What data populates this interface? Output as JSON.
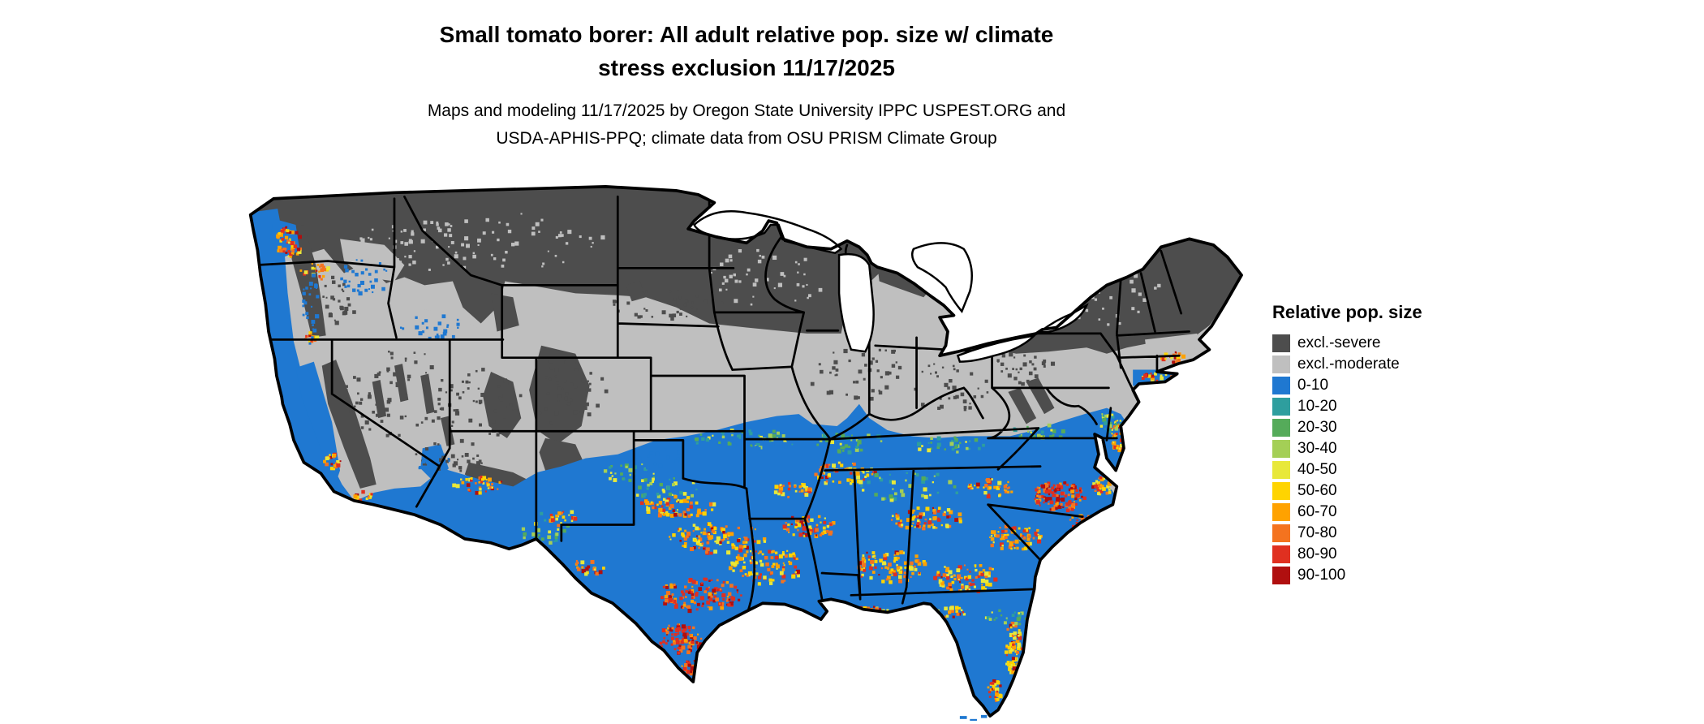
{
  "title": {
    "line1": "Small tomato borer: All adult relative pop. size w/ climate",
    "line2": "stress exclusion 11/17/2025"
  },
  "subtitle": {
    "line1": "Maps and modeling 11/17/2025 by Oregon State University IPPC USPEST.ORG and",
    "line2": "USDA-APHIS-PPQ; climate data from OSU PRISM Climate Group"
  },
  "legend": {
    "title": "Relative pop. size",
    "entries": [
      {
        "label": "excl.-severe",
        "color": "#4d4d4d"
      },
      {
        "label": "excl.-moderate",
        "color": "#bfbfbf"
      },
      {
        "label": "0-10",
        "color": "#1f78d1"
      },
      {
        "label": "10-20",
        "color": "#2e9e9e"
      },
      {
        "label": "20-30",
        "color": "#55ab5a"
      },
      {
        "label": "30-40",
        "color": "#a4cf56"
      },
      {
        "label": "40-50",
        "color": "#e8e83a"
      },
      {
        "label": "50-60",
        "color": "#ffd400"
      },
      {
        "label": "60-70",
        "color": "#ffa200"
      },
      {
        "label": "70-80",
        "color": "#f4731f"
      },
      {
        "label": "80-90",
        "color": "#e03020"
      },
      {
        "label": "90-100",
        "color": "#b00f0f"
      }
    ]
  },
  "map": {
    "region": "Continental United States",
    "water_color": "#ffffff",
    "border_color": "#000000"
  },
  "chart_data": {
    "type": "heatmap",
    "title": "Small tomato borer: All adult relative pop. size w/ climate stress exclusion 11/17/2025",
    "date": "11/17/2025",
    "legend_title": "Relative pop. size",
    "region": "Continental United States",
    "classes": [
      "excl.-severe",
      "excl.-moderate",
      "0-10",
      "10-20",
      "20-30",
      "30-40",
      "40-50",
      "50-60",
      "60-70",
      "70-80",
      "80-90",
      "90-100"
    ],
    "colors": [
      "#4d4d4d",
      "#bfbfbf",
      "#1f78d1",
      "#2e9e9e",
      "#55ab5a",
      "#a4cf56",
      "#e8e83a",
      "#ffd400",
      "#ffa200",
      "#f4731f",
      "#e03020",
      "#b00f0f"
    ],
    "distribution": [
      {
        "area": "Northern tier (WA, ID, MT, Dakotas, MN, WI, Michigan UP, upstate NY, northern New England) plus Cascades, Sierra Nevada and central Rockies",
        "class": "excl.-severe"
      },
      {
        "area": "Central band (Nebraska, Kansas, Iowa, northern Missouri, Illinois, Indiana, Ohio, Pennsylvania, Great Basin, Colorado plateau)",
        "class": "excl.-moderate"
      },
      {
        "area": "Southern US, Pacific coastal strip, California valleys, desert Southwest, Texas, Gulf and South Atlantic states, Florida, mid-Atlantic coast",
        "class": "0-10"
      },
      {
        "area": "Hot-spot speckle band (10-100) from central/south Texas through Oklahoma, Arkansas, the Gulf states, Tennessee valley, Georgia and the Carolinas; Florida ridge; Puget Sound; Phoenix area; Delmarva and coastal southern New England",
        "class": "10-100"
      }
    ]
  }
}
